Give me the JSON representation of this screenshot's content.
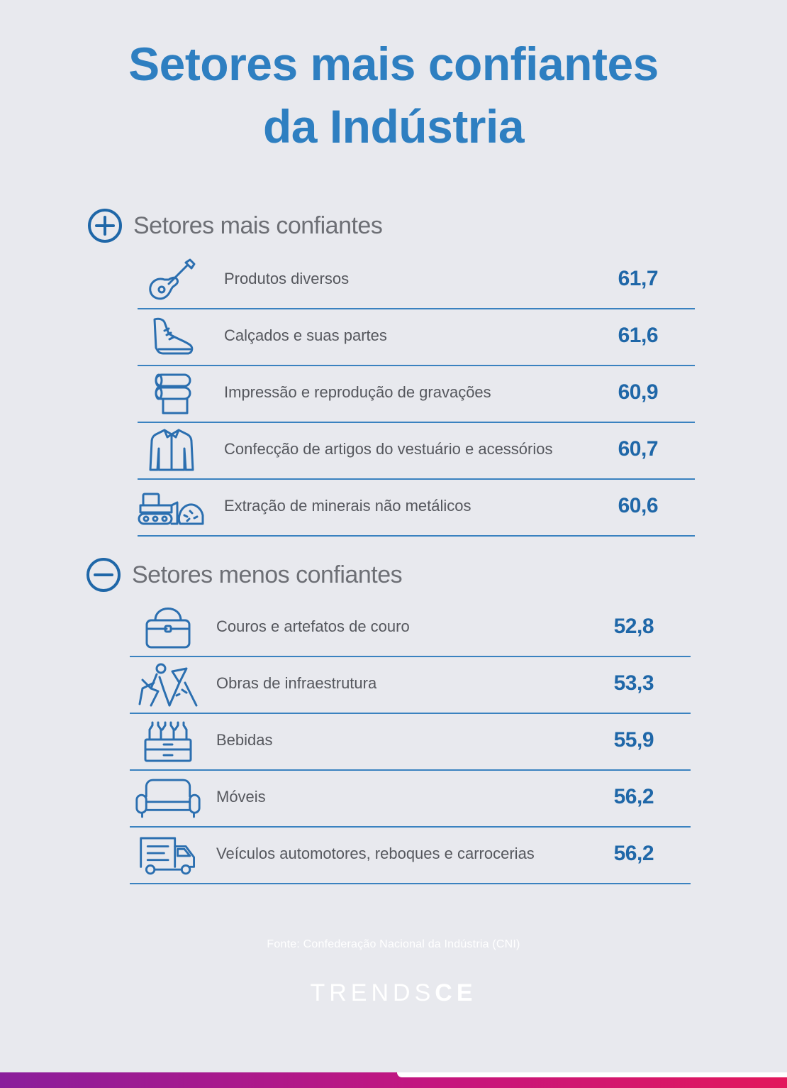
{
  "title": {
    "line1": "Setores mais confiantes",
    "line2": "da Indústria"
  },
  "sections": [
    {
      "heading": "Setores mais confiantes",
      "heading_icon": "plus-circle-icon",
      "rows": [
        {
          "icon": "guitar-icon",
          "label": "Produtos diversos",
          "value": "61,7"
        },
        {
          "icon": "shoe-icon",
          "label": "Calçados e suas partes",
          "value": "61,6"
        },
        {
          "icon": "paper-roll-icon",
          "label": "Impressão e reprodução de gravações",
          "value": "60,9"
        },
        {
          "icon": "jacket-icon",
          "label": "Confecção de artigos do vestuário e acessórios",
          "value": "60,7"
        },
        {
          "icon": "bulldozer-rocks-icon",
          "label": "Extração de minerais não metálicos",
          "value": "60,6"
        }
      ]
    },
    {
      "heading": "Setores menos confiantes",
      "heading_icon": "minus-circle-icon",
      "rows": [
        {
          "icon": "handbag-icon",
          "label": "Couros e artefatos de couro",
          "value": "52,8"
        },
        {
          "icon": "road-worker-icon",
          "label": "Obras de infraestrutura",
          "value": "53,3"
        },
        {
          "icon": "bottle-crate-icon",
          "label": "Bebidas",
          "value": "55,9"
        },
        {
          "icon": "sofa-icon",
          "label": "Móveis",
          "value": "56,2"
        },
        {
          "icon": "truck-icon",
          "label": "Veículos automotores, reboques e carrocerias",
          "value": "56,2"
        }
      ]
    }
  ],
  "source": "Fonte: Confederação Nacional da Indústria (CNI)",
  "brand": {
    "light": "TRENDS",
    "bold": "CE"
  },
  "colors": {
    "accent": "#2e7fc1",
    "value": "#1f67a8",
    "divider": "#3a82c0",
    "background": "#e8e9ee"
  }
}
